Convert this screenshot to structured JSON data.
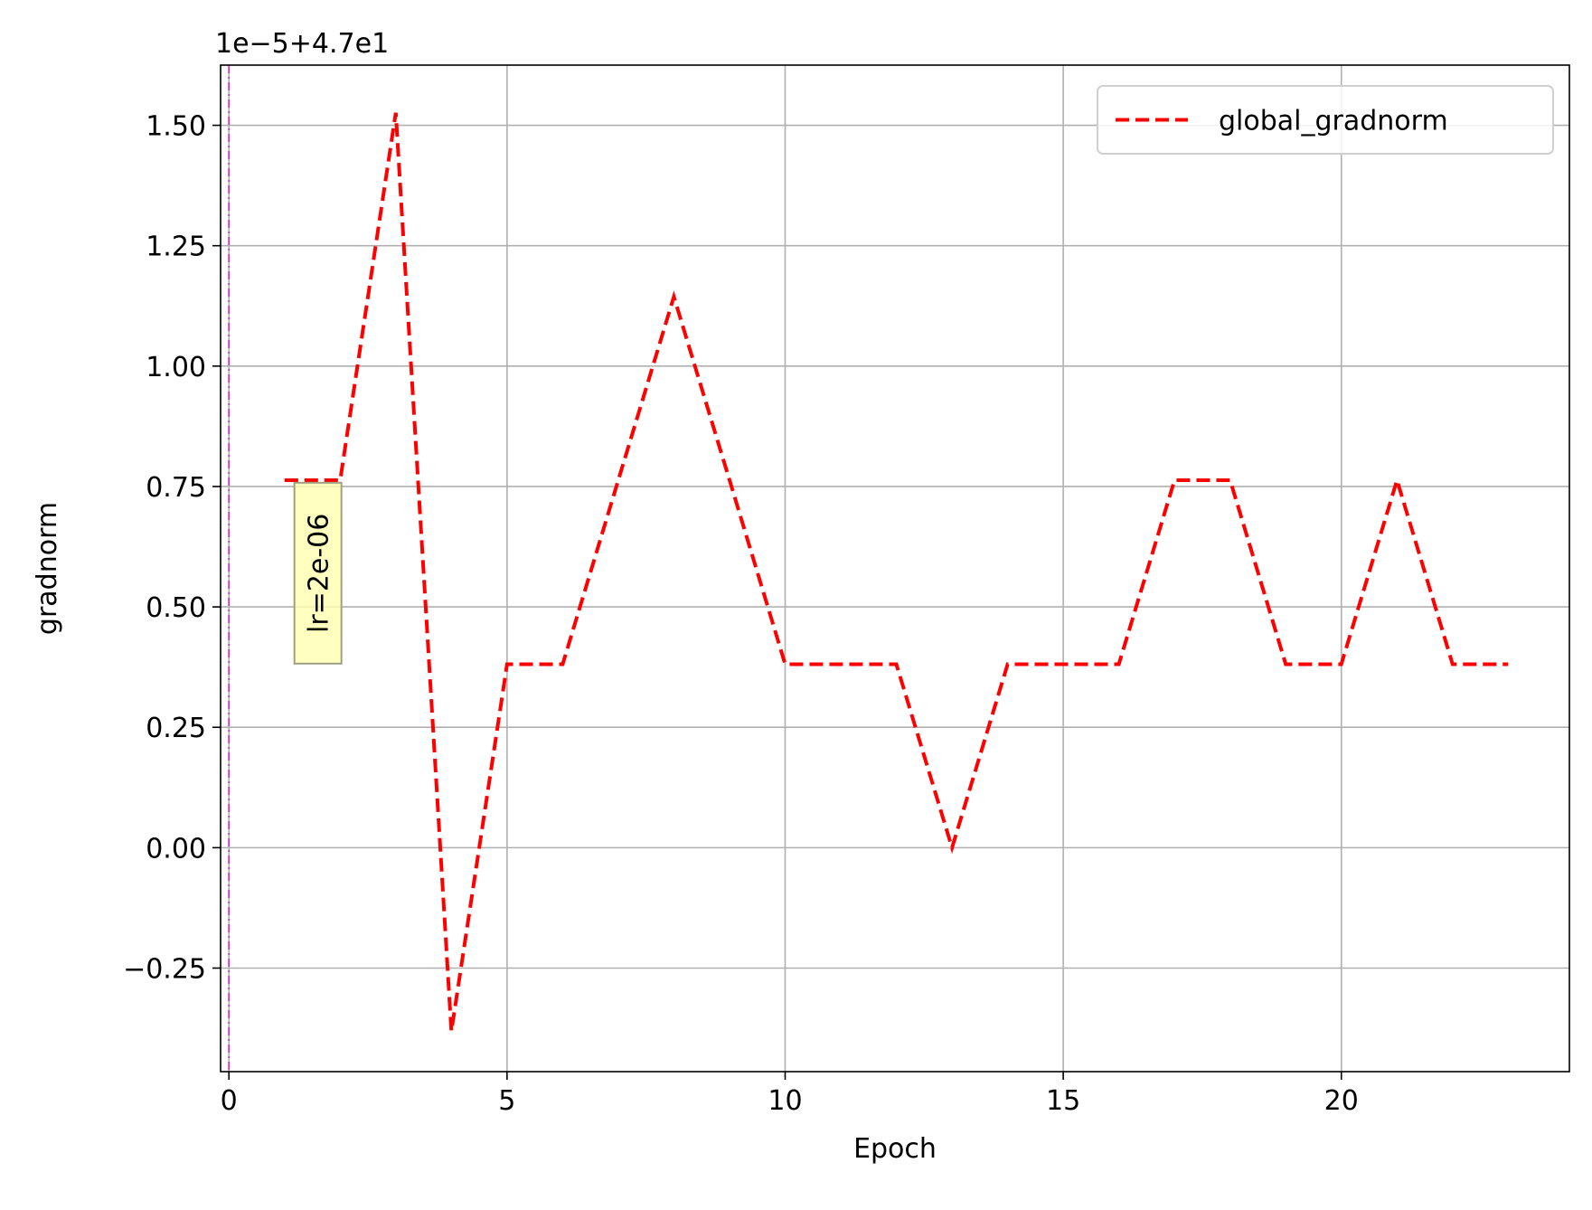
{
  "chart_data": {
    "type": "line",
    "xlabel": "Epoch",
    "ylabel": "gradnorm",
    "offset_label": "1e−5+4.7e1",
    "xlim": [
      -0.15,
      24.1
    ],
    "ylim": [
      -0.465,
      1.625
    ],
    "xticks": [
      0,
      5,
      10,
      15,
      20
    ],
    "xtick_labels": [
      "0",
      "5",
      "10",
      "15",
      "20"
    ],
    "yticks": [
      -0.25,
      0.0,
      0.25,
      0.5,
      0.75,
      1.0,
      1.25,
      1.5
    ],
    "ytick_labels": [
      "−0.25",
      "0.00",
      "0.25",
      "0.50",
      "0.75",
      "1.00",
      "1.25",
      "1.50"
    ],
    "grid": true,
    "legend_position": "top-right",
    "series": [
      {
        "name": "global_gradnorm",
        "color": "#ff0000",
        "linestyle": "dashed",
        "x": [
          1,
          2,
          3,
          4,
          5,
          6,
          7,
          8,
          9,
          10,
          11,
          12,
          13,
          14,
          15,
          16,
          17,
          18,
          19,
          20,
          21,
          22,
          23
        ],
        "y": [
          0.763,
          0.763,
          1.526,
          -0.381,
          0.381,
          0.381,
          0.763,
          1.144,
          0.763,
          0.381,
          0.381,
          0.381,
          0.0,
          0.381,
          0.381,
          0.381,
          0.763,
          0.763,
          0.381,
          0.381,
          0.763,
          0.381,
          0.381
        ]
      }
    ],
    "vline": {
      "x": 0,
      "color": "#cc33cc",
      "linestyle": "dashdot"
    },
    "annotation": {
      "text": "lr=2e-06",
      "x": 1.6,
      "y": 0.57,
      "rotation": -90,
      "box_color": "#ffffb0"
    }
  }
}
